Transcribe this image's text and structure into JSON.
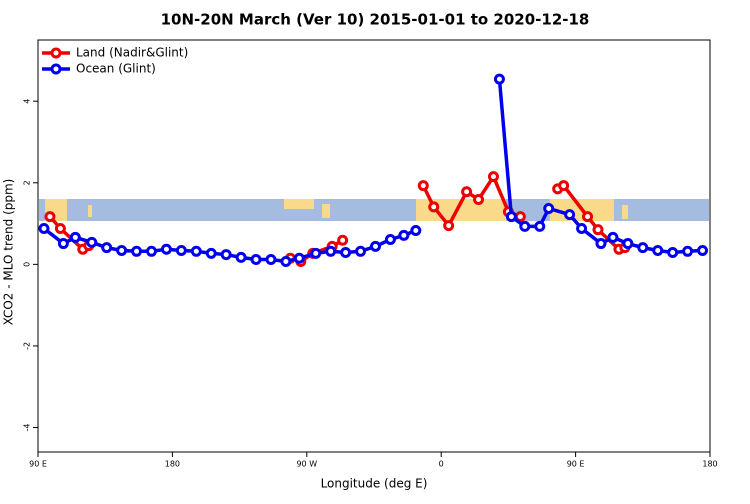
{
  "chart_data": {
    "type": "line",
    "title": "10N-20N March (Ver 10)   2015-01-01 to 2020-12-18",
    "x_label": "Longitude (deg E)",
    "y_label": "XCO2 - MLO trend (ppm)",
    "xlim": [
      90,
      540
    ],
    "ylim": [
      -4.6,
      5.5
    ],
    "xticks": [
      {
        "value": 90,
        "label": "90 E"
      },
      180,
      {
        "value": 270,
        "label": "90 W"
      },
      {
        "value": 360,
        "label": "0"
      },
      {
        "value": 450,
        "label": "90 E"
      },
      {
        "value": 540,
        "label": "180"
      }
    ],
    "yticks": [
      -4,
      -2,
      0,
      2,
      4
    ],
    "legend": "top-left",
    "series": [
      {
        "name": "Land (Nadir&Glint)",
        "color": "#ee0000",
        "x": [
          98,
          105,
          120,
          124,
          null,
          259,
          266,
          274,
          287,
          294,
          null,
          348,
          355,
          365,
          377,
          385,
          395,
          405,
          413,
          null,
          438,
          442,
          458,
          465,
          479,
          483
        ],
        "values": [
          1.17,
          0.88,
          0.37,
          0.46,
          null,
          0.15,
          0.07,
          0.27,
          0.44,
          0.59,
          null,
          1.93,
          1.41,
          0.95,
          1.78,
          1.59,
          2.15,
          1.29,
          1.17,
          null,
          1.85,
          1.93,
          1.17,
          0.85,
          0.37,
          0.41
        ]
      },
      {
        "name": "Ocean (Glint)",
        "color": "#0000ee",
        "x": [
          94,
          107,
          115,
          126,
          136,
          146,
          156,
          166,
          176,
          186,
          196,
          206,
          216,
          226,
          236,
          246,
          256,
          265,
          276,
          286,
          296,
          306,
          316,
          326,
          335,
          343,
          null,
          399,
          407,
          416,
          426,
          432,
          446,
          454,
          467,
          475,
          485,
          495,
          505,
          515,
          525,
          535
        ],
        "values": [
          0.88,
          0.51,
          0.66,
          0.54,
          0.41,
          0.34,
          0.32,
          0.32,
          0.37,
          0.34,
          0.32,
          0.27,
          0.24,
          0.17,
          0.12,
          0.12,
          0.07,
          0.15,
          0.27,
          0.32,
          0.29,
          0.32,
          0.44,
          0.61,
          0.71,
          0.83,
          null,
          4.54,
          1.17,
          0.93,
          0.93,
          1.37,
          1.22,
          0.88,
          0.51,
          0.66,
          0.51,
          0.41,
          0.34,
          0.29,
          0.32,
          0.34
        ]
      }
    ]
  }
}
